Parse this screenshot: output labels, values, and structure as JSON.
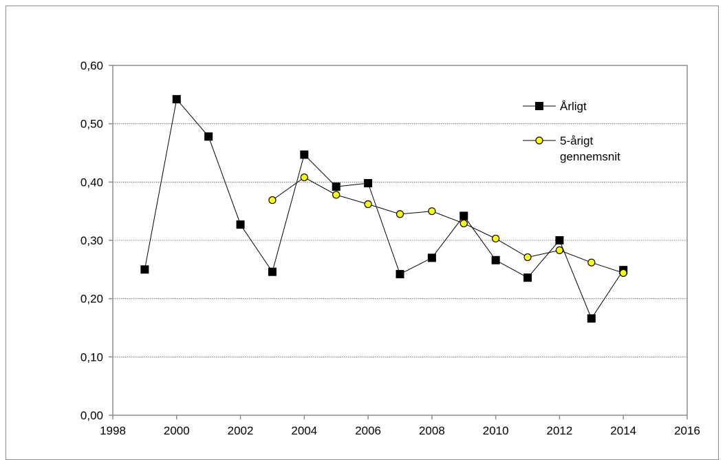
{
  "chart_data": {
    "type": "line",
    "title": "",
    "xlabel": "",
    "ylabel": "",
    "xlim": [
      1998,
      2016
    ],
    "ylim": [
      0,
      0.6
    ],
    "x_ticks": [
      "1998",
      "2000",
      "2002",
      "2004",
      "2006",
      "2008",
      "2010",
      "2012",
      "2014",
      "2016"
    ],
    "y_ticks": [
      "0,00",
      "0,10",
      "0,20",
      "0,30",
      "0,40",
      "0,50",
      "0,60"
    ],
    "grid": "horizontal",
    "legend_position": "top-right",
    "series": [
      {
        "name": "Årligt",
        "marker": "square",
        "color": "#000000",
        "x": [
          1999,
          2000,
          2001,
          2002,
          2003,
          2004,
          2005,
          2006,
          2007,
          2008,
          2009,
          2010,
          2011,
          2012,
          2013,
          2014
        ],
        "values": [
          0.25,
          0.542,
          0.478,
          0.327,
          0.246,
          0.447,
          0.392,
          0.398,
          0.242,
          0.27,
          0.342,
          0.266,
          0.236,
          0.3,
          0.166,
          0.249
        ]
      },
      {
        "name_lines": [
          "5-årigt",
          "gennemsnit"
        ],
        "marker": "circle",
        "color": "#ffff00",
        "x": [
          2003,
          2004,
          2005,
          2006,
          2007,
          2008,
          2009,
          2010,
          2011,
          2012,
          2013,
          2014
        ],
        "values": [
          0.369,
          0.408,
          0.378,
          0.362,
          0.345,
          0.35,
          0.329,
          0.303,
          0.271,
          0.283,
          0.262,
          0.244
        ]
      }
    ]
  }
}
